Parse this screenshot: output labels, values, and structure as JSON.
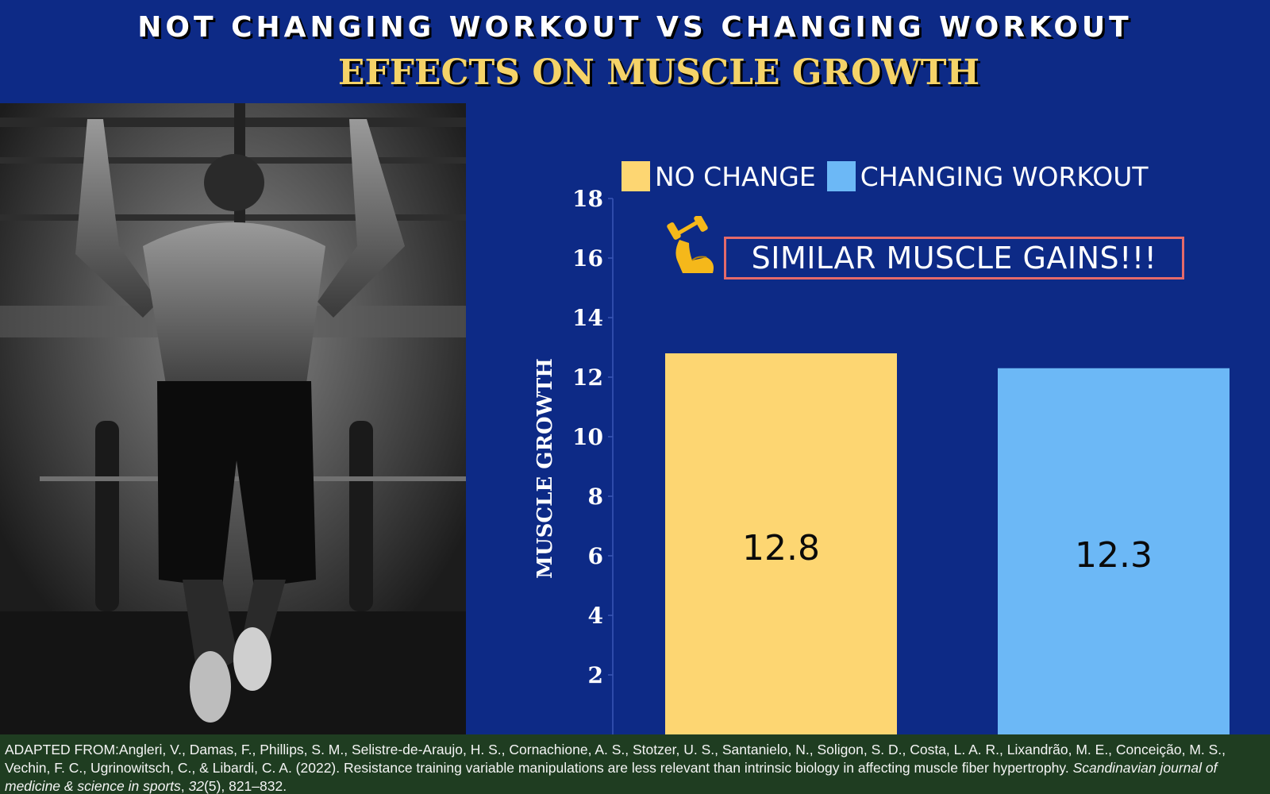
{
  "header": {
    "title": "NOT CHANGING WORKOUT VS CHANGING WORKOUT",
    "subtitle": "EFFECTS ON MUSCLE GROWTH"
  },
  "callout": {
    "icon": "flexed-arm-dumbbell-icon",
    "text": "SIMILAR MUSCLE GAINS!!!"
  },
  "colors": {
    "background": "#0d2a86",
    "no_change": "#fdd672",
    "changing": "#6cb8f6",
    "callout_border": "#e46a6a",
    "citation_bg": "#1f3d21"
  },
  "chart_data": {
    "type": "bar",
    "title": "",
    "xlabel": "",
    "ylabel": "MUSCLE GROWTH",
    "ylim": [
      0,
      18
    ],
    "yticks": [
      2,
      4,
      6,
      8,
      10,
      12,
      14,
      16,
      18
    ],
    "grid": false,
    "legend_position": "top",
    "series": [
      {
        "name": "NO CHANGE",
        "value": 12.8,
        "label": "12.8",
        "color": "#fdd672"
      },
      {
        "name": "CHANGING WORKOUT",
        "value": 12.3,
        "label": "12.3",
        "color": "#6cb8f6"
      }
    ]
  },
  "citation": {
    "prefix": "ADAPTED FROM:Angleri, V., Damas, F., Phillips, S. M., Selistre-de-Araujo, H. S., Cornachione, A. S., Stotzer, U. S., Santanielo, N., Soligon, S. D., Costa, L. A. R., Lixandrão, M. E., Conceição, M. S., Vechin, F. C., Ugrinowitsch, C., & Libardi, C. A. (2022). Resistance training variable manipulations are less relevant than intrinsic biology in affecting muscle fiber hypertrophy. ",
    "journal": "Scandinavian journal of medicine & science in sports",
    "sep1": ", ",
    "volume": "32",
    "issue": "(5), 821–832."
  }
}
